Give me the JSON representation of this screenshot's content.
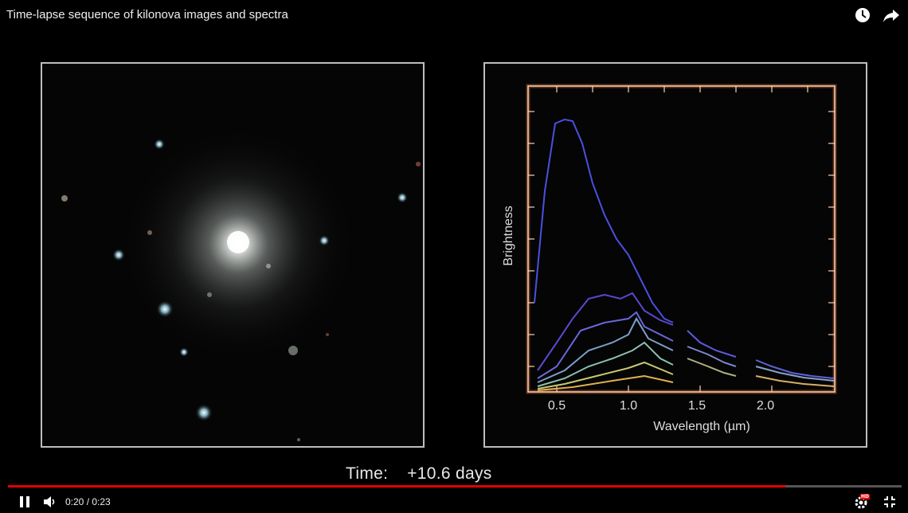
{
  "video_title": "Time-lapse sequence of kilonova images and spectra",
  "top_icons": [
    "watch-later-icon",
    "share-icon"
  ],
  "spectrum_plot": {
    "ylabel": "Brightness",
    "xlabel": "Wavelength (µm)",
    "xticks": [
      "0.5",
      "1.0",
      "1.5",
      "2.0"
    ]
  },
  "time_caption": {
    "label": "Time:",
    "value": "+10.6 days"
  },
  "player": {
    "timecode": "0:20 / 0:23",
    "progress_fraction": 0.87,
    "hd_badge": "HD",
    "accent_color": "#e00000"
  }
}
